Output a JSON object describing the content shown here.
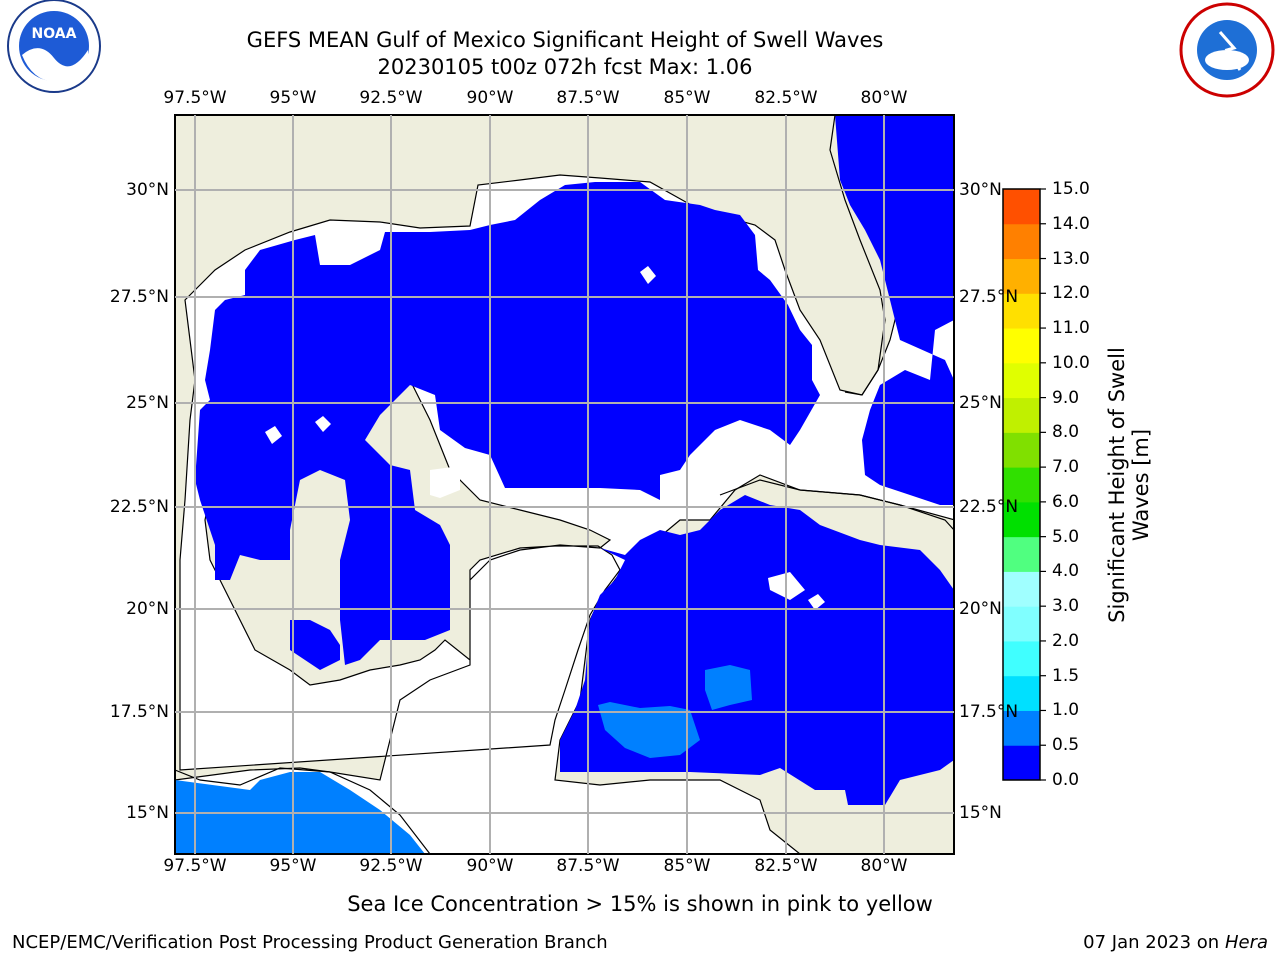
{
  "title_line1": "GEFS MEAN Gulf of Mexico Significant Height of Swell Waves",
  "title_line2": "20230105 t00z 072h fcst   Max: 1.06",
  "logos": {
    "left": "noaa-logo",
    "right": "national-weather-service-logo"
  },
  "lon_ticks": [
    "97.5°W",
    "95°W",
    "92.5°W",
    "90°W",
    "87.5°W",
    "85°W",
    "82.5°W",
    "80°W"
  ],
  "lat_ticks_left": [
    "30°N",
    "27.5°N",
    "25°N",
    "22.5°N",
    "20°N",
    "17.5°N",
    "15°N"
  ],
  "lat_ticks_right": [
    "30°N",
    "27.5°N",
    "25°N",
    "22.5°N",
    "20°N",
    "17.5°N",
    "15°N"
  ],
  "colorbar": {
    "label": "Significant Height of Swell Waves [m]",
    "ticks": [
      "15.0",
      "14.0",
      "13.0",
      "12.0",
      "11.0",
      "10.0",
      "9.0",
      "8.0",
      "7.0",
      "6.0",
      "5.0",
      "4.0",
      "3.0",
      "2.0",
      "1.5",
      "1.0",
      "0.5",
      "0.0"
    ],
    "colors": [
      "#0000ff",
      "#0080ff",
      "#00e0ff",
      "#40ffff",
      "#80ffff",
      "#a0ffff",
      "#50ff80",
      "#00e000",
      "#30e000",
      "#80e000",
      "#c0f000",
      "#e0ff00",
      "#ffff00",
      "#ffe000",
      "#ffb000",
      "#ff8000",
      "#ff5000",
      "#ff2000",
      "#ff0000"
    ]
  },
  "colors": {
    "land": "#eeeedd",
    "ocean_low": "#0000ff",
    "ocean_mid": "#0080ff",
    "grid": "#b0b0b0"
  },
  "ice_note": "Sea Ice Concentration > 15% is shown in pink to yellow",
  "footer_left": "NCEP/EMC/Verification Post Processing Product Generation Branch",
  "footer_right_date": "07 Jan 2023 on ",
  "footer_right_host": "Hera"
}
